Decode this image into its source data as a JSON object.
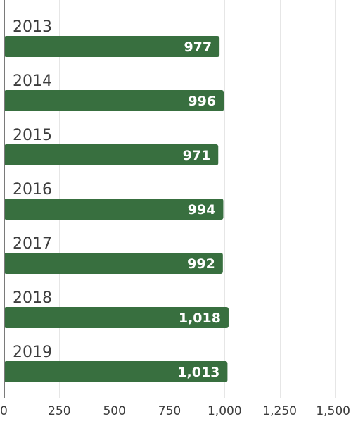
{
  "chart_data": {
    "type": "bar",
    "orientation": "horizontal",
    "categories": [
      "2013",
      "2014",
      "2015",
      "2016",
      "2017",
      "2018",
      "2019"
    ],
    "values": [
      977,
      996,
      971,
      994,
      992,
      1018,
      1013
    ],
    "value_labels": [
      "977",
      "996",
      "971",
      "994",
      "992",
      "1,018",
      "1,013"
    ],
    "xlim": [
      0,
      1500
    ],
    "xticks": [
      0,
      250,
      500,
      750,
      1000,
      1250,
      1500
    ],
    "xtick_labels": [
      "0",
      "250",
      "500",
      "750",
      "1,000",
      "1,250",
      "1,500"
    ],
    "grid": true,
    "bar_color": "#386f3f"
  }
}
